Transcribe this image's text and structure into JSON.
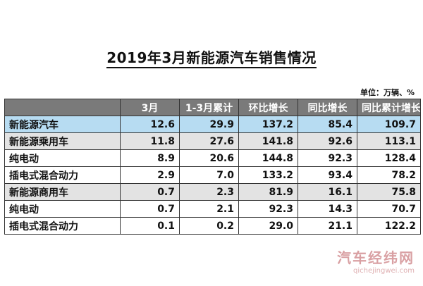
{
  "title": "2019年3月新能源汽车销售情况",
  "unit": "单位：万辆、%",
  "table": {
    "headers": [
      "",
      "3月",
      "1-3月累计",
      "环比增长",
      "同比增长",
      "同比累计增长"
    ],
    "rows": [
      {
        "label": "新能源汽车",
        "values": [
          "12.6",
          "29.9",
          "137.2",
          "85.4",
          "109.7"
        ]
      },
      {
        "label": "新能源乘用车",
        "values": [
          "11.8",
          "27.6",
          "141.8",
          "92.6",
          "113.1"
        ]
      },
      {
        "label": "纯电动",
        "values": [
          "8.9",
          "20.6",
          "144.8",
          "92.3",
          "128.4"
        ]
      },
      {
        "label": "插电式混合动力",
        "values": [
          "2.9",
          "7.0",
          "133.2",
          "93.4",
          "78.2"
        ]
      },
      {
        "label": "新能源商用车",
        "values": [
          "0.7",
          "2.3",
          "81.9",
          "16.1",
          "75.8"
        ]
      },
      {
        "label": "纯电动",
        "values": [
          "0.7",
          "2.1",
          "92.3",
          "14.3",
          "70.7"
        ]
      },
      {
        "label": "插电式混合动力",
        "values": [
          "0.1",
          "0.2",
          "29.0",
          "21.1",
          "122.2"
        ]
      }
    ]
  },
  "watermark": {
    "main": "汽车经纬网",
    "url": "qichejingwei.com"
  }
}
